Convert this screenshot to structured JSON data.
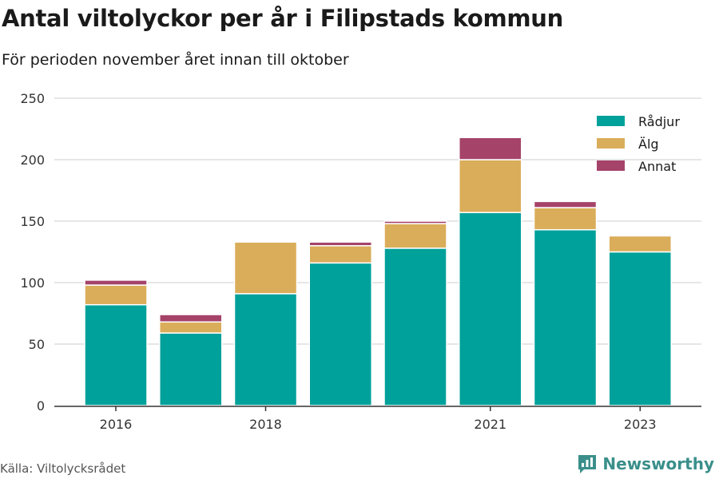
{
  "title": "Antal viltolyckor per år i Filipstads kommun",
  "subtitle": "För perioden november året innan till oktober",
  "source": "Källa: Viltolycksrådet",
  "brand": {
    "name": "Newsworthy",
    "icon": "newsworthy-logo-icon",
    "color": "#3a8f8a"
  },
  "chart_data": {
    "type": "bar",
    "stacked": true,
    "title": "Antal viltolyckor per år i Filipstads kommun",
    "subtitle": "För perioden november året innan till oktober",
    "categories": [
      "2016",
      "2017",
      "2018",
      "2019",
      "2020",
      "2021",
      "2022",
      "2023"
    ],
    "x_tick_labels": [
      "2016",
      "",
      "2018",
      "",
      "",
      "2021",
      "",
      "2023"
    ],
    "series": [
      {
        "name": "Rådjur",
        "color": "#00a19a",
        "values": [
          82,
          59,
          91,
          116,
          128,
          157,
          143,
          125
        ]
      },
      {
        "name": "Älg",
        "color": "#daad5a",
        "values": [
          16,
          9,
          42,
          14,
          20,
          43,
          18,
          13
        ]
      },
      {
        "name": "Annat",
        "color": "#a54369",
        "values": [
          4,
          6,
          0,
          3,
          2,
          18,
          5,
          0
        ]
      }
    ],
    "ylim": [
      0,
      250
    ],
    "yticks": [
      0,
      50,
      100,
      150,
      200,
      250
    ],
    "xlabel": "",
    "ylabel": "",
    "grid": true,
    "legend": "top-right"
  }
}
